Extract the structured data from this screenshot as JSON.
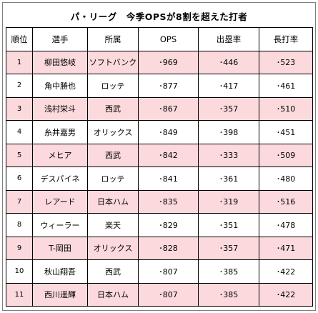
{
  "title": "パ・リーグ　今季OPSが8割を超えた打者",
  "columns": [
    "順位",
    "選手",
    "所属",
    "OPS",
    "出塁率",
    "長打率"
  ],
  "rows": [
    {
      "rank": "1",
      "player": "柳田悠岐",
      "team": "ソフトバンク",
      "ops": "･969",
      "obp": "･446",
      "slg": "･523",
      "shade": "pink"
    },
    {
      "rank": "2",
      "player": "角中勝也",
      "team": "ロッテ",
      "ops": "･877",
      "obp": "･417",
      "slg": "･461",
      "shade": "white"
    },
    {
      "rank": "3",
      "player": "浅村栄斗",
      "team": "西武",
      "ops": "･867",
      "obp": "･357",
      "slg": "･510",
      "shade": "pink"
    },
    {
      "rank": "4",
      "player": "糸井嘉男",
      "team": "オリックス",
      "ops": "･849",
      "obp": "･398",
      "slg": "･451",
      "shade": "white"
    },
    {
      "rank": "5",
      "player": "メヒア",
      "team": "西武",
      "ops": "･842",
      "obp": "･333",
      "slg": "･509",
      "shade": "pink"
    },
    {
      "rank": "6",
      "player": "デスパイネ",
      "team": "ロッテ",
      "ops": "･841",
      "obp": "･361",
      "slg": "･480",
      "shade": "white"
    },
    {
      "rank": "7",
      "player": "レアード",
      "team": "日本ハム",
      "ops": "･835",
      "obp": "･319",
      "slg": "･516",
      "shade": "pink"
    },
    {
      "rank": "8",
      "player": "ウィーラー",
      "team": "楽天",
      "ops": "･829",
      "obp": "･351",
      "slg": "･478",
      "shade": "white"
    },
    {
      "rank": "9",
      "player": "T-岡田",
      "team": "オリックス",
      "ops": "･828",
      "obp": "･357",
      "slg": "･471",
      "shade": "pink"
    },
    {
      "rank": "10",
      "player": "秋山翔吾",
      "team": "西武",
      "ops": "･807",
      "obp": "･385",
      "slg": "･422",
      "shade": "white"
    },
    {
      "rank": "11",
      "player": "西川遥輝",
      "team": "日本ハム",
      "ops": "･807",
      "obp": "･385",
      "slg": "･422",
      "shade": "pink"
    }
  ],
  "colors": {
    "shade_pink": "#fbd9dc",
    "shade_white": "#ffffff",
    "border": "#000000"
  }
}
